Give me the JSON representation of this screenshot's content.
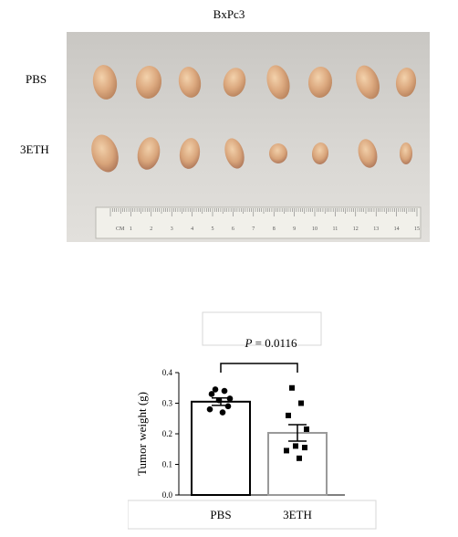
{
  "figure": {
    "photo_title": "BxPc3",
    "row_labels": [
      "PBS",
      "3ETH"
    ],
    "ruler": {
      "unit_label": "CM",
      "ticks": [
        "1",
        "2",
        "3",
        "4",
        "5",
        "6",
        "7",
        "8",
        "9",
        "10",
        "11",
        "12",
        "13",
        "14",
        "15"
      ]
    },
    "tumors_per_group": 8
  },
  "chart_data": {
    "type": "bar",
    "categories": [
      "PBS",
      "3ETH"
    ],
    "values": [
      0.305,
      0.203
    ],
    "sem": [
      0.012,
      0.027
    ],
    "points": [
      [
        0.345,
        0.34,
        0.33,
        0.315,
        0.31,
        0.29,
        0.28,
        0.27
      ],
      [
        0.35,
        0.3,
        0.26,
        0.215,
        0.16,
        0.155,
        0.145,
        0.12
      ]
    ],
    "ylabel": "Tumor weight (g)",
    "ylim": [
      0,
      0.4
    ],
    "yticks": [
      "0.0",
      "0.1",
      "0.2",
      "0.3",
      "0.4"
    ],
    "annotation": {
      "p_symbol": "P",
      "p_value": " = 0.0116"
    },
    "colors": {
      "PBS": "#000000",
      "3ETH": "#9a9a9a"
    }
  }
}
